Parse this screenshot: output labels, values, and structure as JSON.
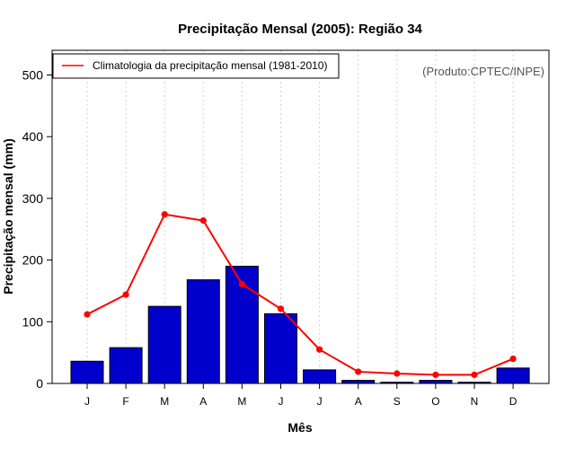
{
  "chart_data": {
    "type": "bar",
    "title": "Precipitação Mensal (2005): Região 34",
    "xlabel": "Mês",
    "ylabel": "Precipitação mensal (mm)",
    "ylim": [
      0,
      540
    ],
    "yticks": [
      0,
      100,
      200,
      300,
      400,
      500
    ],
    "categories": [
      "J",
      "F",
      "M",
      "A",
      "M",
      "J",
      "J",
      "A",
      "S",
      "O",
      "N",
      "D"
    ],
    "series": [
      {
        "name": "Precipitação mensal 2005",
        "type": "bar",
        "color": "#0000cd",
        "values": [
          36,
          58,
          125,
          168,
          190,
          113,
          22,
          5,
          2,
          5,
          2,
          25
        ]
      },
      {
        "name": "Climatologia da precipitação mensal (1981-2010)",
        "type": "line",
        "color": "#ff0000",
        "values": [
          112,
          144,
          274,
          264,
          161,
          121,
          55,
          19,
          16,
          14,
          14,
          40
        ]
      }
    ],
    "legend": {
      "position": "top-left",
      "label": "Climatologia da precipitação mensal (1981-2010)"
    },
    "credit": "(Produto:CPTEC/INPE)",
    "grid": "vertical-dotted"
  }
}
